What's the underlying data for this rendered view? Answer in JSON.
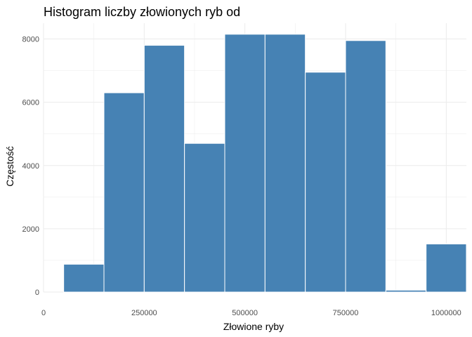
{
  "chart_data": {
    "type": "bar",
    "title": "Histogram liczby złowionych ryb od",
    "xlabel": "Złowione ryby",
    "ylabel": "Częstość",
    "bin_width": 100000,
    "bins": [
      {
        "x": 100000,
        "count": 880
      },
      {
        "x": 200000,
        "count": 6300
      },
      {
        "x": 300000,
        "count": 7800
      },
      {
        "x": 400000,
        "count": 4700
      },
      {
        "x": 500000,
        "count": 8150
      },
      {
        "x": 600000,
        "count": 8150
      },
      {
        "x": 700000,
        "count": 6950
      },
      {
        "x": 800000,
        "count": 7950
      },
      {
        "x": 900000,
        "count": 60
      },
      {
        "x": 1000000,
        "count": 1520
      }
    ],
    "xlim": [
      0,
      1050000
    ],
    "ylim": [
      0,
      8500
    ],
    "x_ticks": [
      {
        "value": 0,
        "label": "0"
      },
      {
        "value": 250000,
        "label": "250000"
      },
      {
        "value": 500000,
        "label": "500000"
      },
      {
        "value": 750000,
        "label": "750000"
      },
      {
        "value": 1000000,
        "label": "1000000"
      }
    ],
    "y_ticks": [
      {
        "value": 0,
        "label": "0"
      },
      {
        "value": 2000,
        "label": "2000"
      },
      {
        "value": 4000,
        "label": "4000"
      },
      {
        "value": 6000,
        "label": "6000"
      },
      {
        "value": 8000,
        "label": "8000"
      }
    ],
    "grid": true,
    "legend": "none",
    "colors": {
      "bar_fill": "#4682b4",
      "bar_edge": "#ffffff",
      "grid": "#ebebeb"
    }
  }
}
